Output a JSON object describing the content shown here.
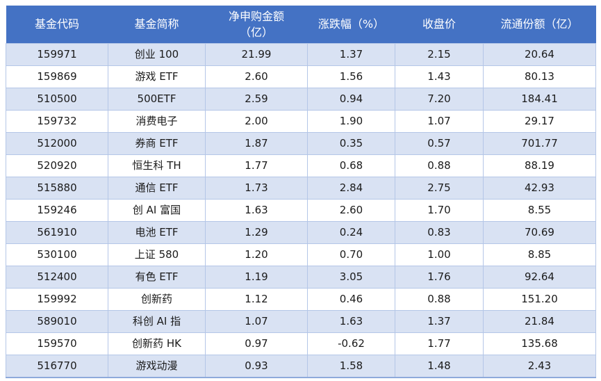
{
  "colors": {
    "header_bg": "#4472C4",
    "header_text": "#FFFFFF",
    "band_bg": "#D9E2F3",
    "grid": "#B4C6E7",
    "bottom_border": "#8EAADB",
    "text": "#1A1A1A"
  },
  "chart_data": {
    "type": "table",
    "title": "",
    "columns": [
      "基金代码",
      "基金简称",
      "净申购金额\n（亿）",
      "涨跌幅（%）",
      "收盘价",
      "流通份额（亿）"
    ],
    "column_keys": [
      "code",
      "name",
      "net_purchase",
      "change_pct",
      "close",
      "float_shares"
    ],
    "rows": [
      [
        "159971",
        "创业 100",
        "21.99",
        "1.37",
        "2.15",
        "20.64"
      ],
      [
        "159869",
        "游戏 ETF",
        "2.60",
        "1.56",
        "1.43",
        "80.13"
      ],
      [
        "510500",
        "500ETF",
        "2.59",
        "0.94",
        "7.20",
        "184.41"
      ],
      [
        "159732",
        "消费电子",
        "2.00",
        "1.90",
        "1.07",
        "29.17"
      ],
      [
        "512000",
        "券商 ETF",
        "1.87",
        "0.35",
        "0.57",
        "701.77"
      ],
      [
        "520920",
        "恒生科 TH",
        "1.77",
        "0.68",
        "0.88",
        "88.19"
      ],
      [
        "515880",
        "通信 ETF",
        "1.73",
        "2.84",
        "2.75",
        "42.93"
      ],
      [
        "159246",
        "创 AI 富国",
        "1.63",
        "2.60",
        "1.70",
        "8.55"
      ],
      [
        "561910",
        "电池 ETF",
        "1.29",
        "0.24",
        "0.83",
        "70.69"
      ],
      [
        "530100",
        "上证 580",
        "1.20",
        "0.70",
        "1.00",
        "8.85"
      ],
      [
        "512400",
        "有色 ETF",
        "1.19",
        "3.05",
        "1.76",
        "92.64"
      ],
      [
        "159992",
        "创新药",
        "1.12",
        "0.46",
        "0.88",
        "151.20"
      ],
      [
        "589010",
        "科创 AI 指",
        "1.07",
        "1.63",
        "1.37",
        "21.84"
      ],
      [
        "159570",
        "创新药 HK",
        "0.97",
        "-0.62",
        "1.77",
        "135.68"
      ],
      [
        "516770",
        "游戏动漫",
        "0.93",
        "1.58",
        "1.48",
        "2.43"
      ]
    ],
    "layout": {
      "banding": "odd-rows-light-blue",
      "alignment": "center"
    }
  }
}
